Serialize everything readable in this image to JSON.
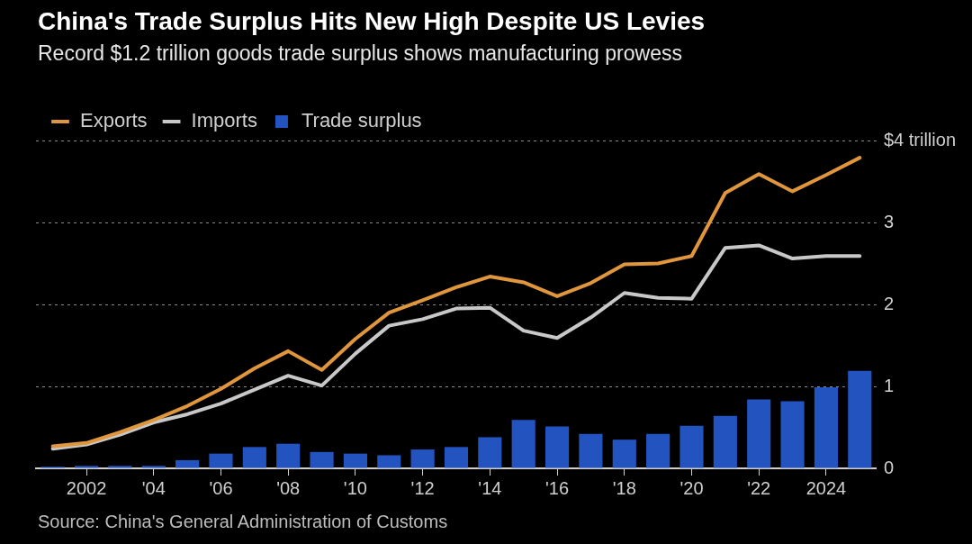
{
  "chart_data": {
    "type": "bar",
    "title": "China's Trade Surplus Hits New High Despite US Levies",
    "subtitle": "Record $1.2 trillion goods trade surplus shows manufacturing prowess",
    "categories": [
      null,
      "2002",
      null,
      "'04",
      null,
      "'06",
      null,
      "'08",
      null,
      "'10",
      null,
      "'12",
      null,
      "'14",
      null,
      "'16",
      null,
      "'18",
      null,
      "'20",
      null,
      "'22",
      null,
      "2024",
      null
    ],
    "series": [
      {
        "name": "Exports",
        "type": "line",
        "color": "#e0963c",
        "values": [
          0.27,
          0.31,
          0.44,
          0.59,
          0.76,
          0.97,
          1.22,
          1.43,
          1.2,
          1.58,
          1.9,
          2.05,
          2.21,
          2.34,
          2.27,
          2.1,
          2.26,
          2.49,
          2.5,
          2.59,
          3.36,
          3.59,
          3.38,
          3.58,
          3.79
        ]
      },
      {
        "name": "Imports",
        "type": "line",
        "color": "#c8c8c8",
        "values": [
          0.24,
          0.29,
          0.41,
          0.56,
          0.66,
          0.79,
          0.96,
          1.13,
          1.01,
          1.4,
          1.74,
          1.82,
          1.95,
          1.96,
          1.68,
          1.59,
          1.84,
          2.14,
          2.08,
          2.07,
          2.69,
          2.72,
          2.56,
          2.59,
          2.59
        ]
      },
      {
        "name": "Trade surplus",
        "color": "#2353bf",
        "values": [
          0.02,
          0.03,
          0.03,
          0.03,
          0.1,
          0.18,
          0.26,
          0.3,
          0.2,
          0.18,
          0.16,
          0.23,
          0.26,
          0.38,
          0.59,
          0.51,
          0.42,
          0.35,
          0.42,
          0.52,
          0.64,
          0.84,
          0.82,
          0.99,
          1.19
        ]
      }
    ],
    "ylim": [
      0,
      4
    ],
    "yticks": [
      0,
      1,
      2,
      3,
      {
        "value": 4,
        "label": "$4 trillion"
      }
    ],
    "grid": "y",
    "legend": "top left",
    "annotations": [
      "Source: China's General Administration of Customs"
    ]
  }
}
